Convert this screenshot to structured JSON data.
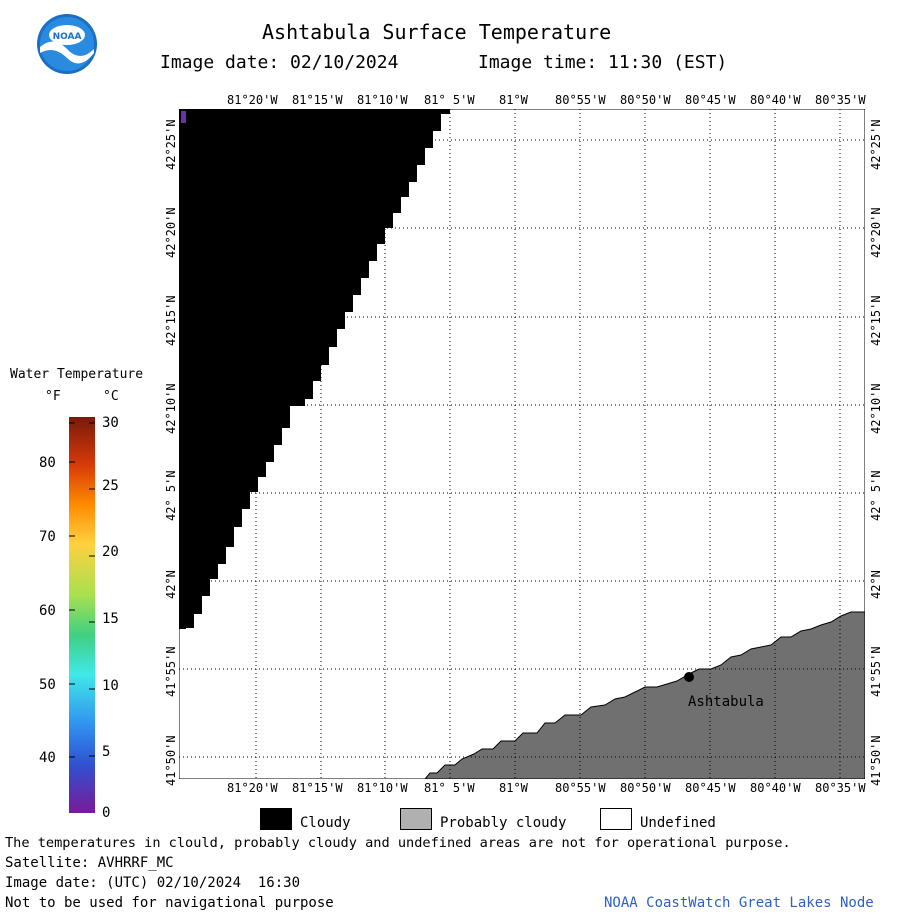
{
  "header": {
    "title": "Ashtabula Surface Temperature",
    "image_date": "Image date: 02/10/2024",
    "image_time": "Image time: 11:30 (EST)"
  },
  "logo": {
    "text": "NOAA"
  },
  "map": {
    "lon_labels": [
      "81°20'W",
      "81°15'W",
      "81°10'W",
      "81° 5'W",
      "81°W",
      "80°55'W",
      "80°50'W",
      "80°45'W",
      "80°40'W",
      "80°35'W"
    ],
    "lat_labels": [
      "42°25'N",
      "42°20'N",
      "42°15'N",
      "42°10'N",
      "42° 5'N",
      "42°N",
      "41°55'N",
      "41°50'N"
    ],
    "place_label": "Ashtabula",
    "colors": {
      "cloud": "#000000",
      "land": "#707070",
      "undefined": "#ffffff",
      "grid": "#000000"
    }
  },
  "colorbar": {
    "title": "Water Temperature",
    "unit_f": "°F",
    "unit_c": "°C",
    "f_ticks": [
      "80",
      "70",
      "60",
      "50",
      "40"
    ],
    "c_ticks": [
      "30",
      "25",
      "20",
      "15",
      "10",
      "5",
      "0"
    ]
  },
  "legend": {
    "cloudy": "Cloudy",
    "probably_cloudy": "Probably cloudy",
    "undefined": "Undefined"
  },
  "footer": {
    "disclaimer": "The temperatures in clould, probably cloudy and undefined areas are not for operational purpose.",
    "satellite": "Satellite: AVHRRF_MC",
    "utc_date": "Image date: (UTC) 02/10/2024  16:30",
    "nav_warning": "Not to be used for navigational purpose",
    "credit": "NOAA CoastWatch Great Lakes Node"
  }
}
